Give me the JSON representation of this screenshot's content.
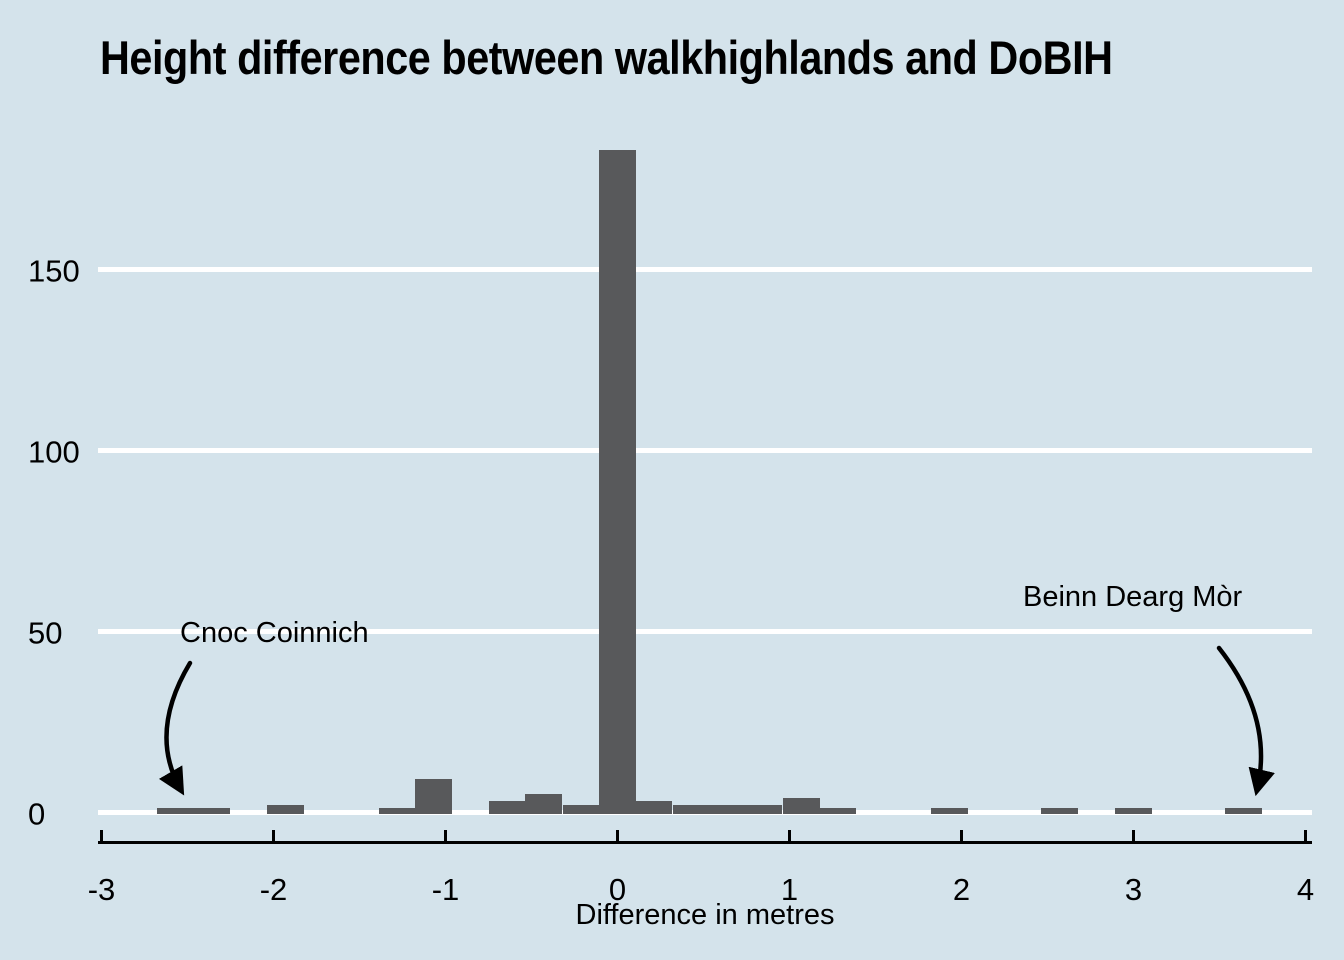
{
  "title": "Height difference between walkhighlands and DoBIH",
  "x_axis": {
    "label": "Difference in metres",
    "tick_labels": [
      "-3",
      "-2",
      "-1",
      "0",
      "1",
      "2",
      "3",
      "4"
    ],
    "tick_values": [
      -3,
      -2,
      -1,
      0,
      1,
      2,
      3,
      4
    ]
  },
  "y_axis": {
    "tick_labels": [
      "0",
      "50",
      "100",
      "150"
    ],
    "tick_values": [
      0,
      50,
      100,
      150
    ]
  },
  "annotations": [
    {
      "label": "Cnoc Coinnich",
      "target_x_metres": -2.5,
      "target_count": 1
    },
    {
      "label": "Beinn Dearg Mòr",
      "target_x_metres": 3.64,
      "target_count": 1
    }
  ],
  "colors": {
    "background": "#d4e3eb",
    "bar": "#58595b",
    "gridline": "#ffffff",
    "text": "#000000",
    "axis": "#000000"
  },
  "chart_data": {
    "type": "bar",
    "title": "Height difference between walkhighlands and DoBIH",
    "xlabel": "Difference in metres",
    "ylabel": "",
    "xlim": [
      -3,
      4
    ],
    "ylim": [
      0,
      190
    ],
    "grid": "horizontal white lines at 0, 50, 100, 150",
    "legend": "none",
    "bin_width_metres": 0.215,
    "bins": [
      {
        "center": -2.57,
        "count": 1
      },
      {
        "center": -2.36,
        "count": 1
      },
      {
        "center": -1.93,
        "count": 2
      },
      {
        "center": -1.28,
        "count": 1
      },
      {
        "center": -1.07,
        "count": 9
      },
      {
        "center": -0.64,
        "count": 3
      },
      {
        "center": -0.43,
        "count": 5
      },
      {
        "center": -0.21,
        "count": 2
      },
      {
        "center": 0.0,
        "count": 183
      },
      {
        "center": 0.21,
        "count": 3
      },
      {
        "center": 0.43,
        "count": 2
      },
      {
        "center": 0.64,
        "count": 2
      },
      {
        "center": 0.85,
        "count": 2
      },
      {
        "center": 1.07,
        "count": 4
      },
      {
        "center": 1.28,
        "count": 1
      },
      {
        "center": 1.93,
        "count": 1
      },
      {
        "center": 2.57,
        "count": 1
      },
      {
        "center": 3.0,
        "count": 1
      },
      {
        "center": 3.64,
        "count": 1
      }
    ]
  }
}
